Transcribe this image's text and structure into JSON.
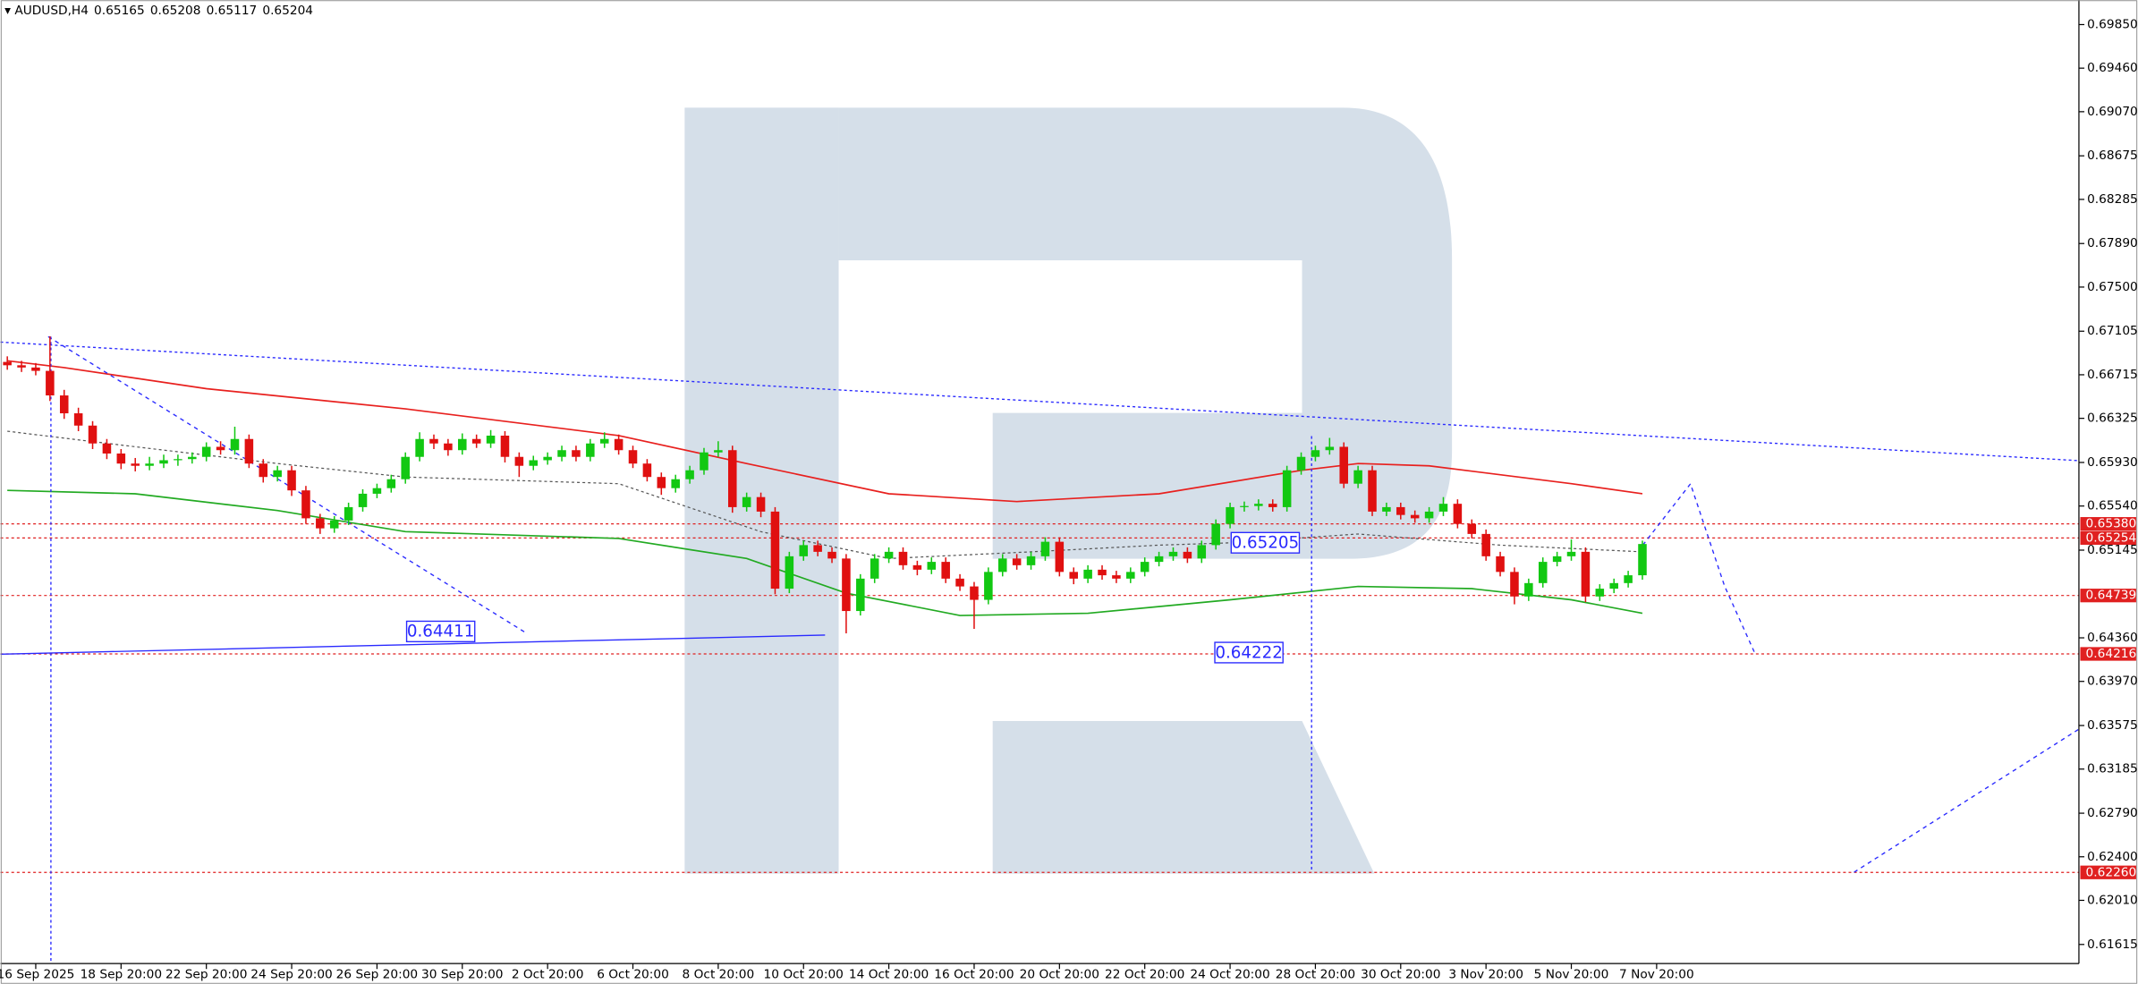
{
  "chart_data": {
    "type": "candlestick",
    "title": "AUDUSD,H4",
    "ohlc": [
      0.65165,
      0.65208,
      0.65117,
      0.65204
    ],
    "up_color": "#12c812",
    "down_color": "#e01010",
    "xlim": [
      -0.48,
      145.7
    ],
    "ylim": [
      0.61444,
      0.7007
    ],
    "xticks": [
      {
        "value": 2,
        "label": "16 Sep 2025"
      },
      {
        "value": 8,
        "label": "18 Sep 20:00"
      },
      {
        "value": 14,
        "label": "22 Sep 20:00"
      },
      {
        "value": 20,
        "label": "24 Sep 20:00"
      },
      {
        "value": 26,
        "label": "26 Sep 20:00"
      },
      {
        "value": 32,
        "label": "30 Sep 20:00"
      },
      {
        "value": 38,
        "label": "2 Oct 20:00"
      },
      {
        "value": 44,
        "label": "6 Oct 20:00"
      },
      {
        "value": 50,
        "label": "8 Oct 20:00"
      },
      {
        "value": 56,
        "label": "10 Oct 20:00"
      },
      {
        "value": 62,
        "label": "14 Oct 20:00"
      },
      {
        "value": 68,
        "label": "16 Oct 20:00"
      },
      {
        "value": 74,
        "label": "20 Oct 20:00"
      },
      {
        "value": 80,
        "label": "22 Oct 20:00"
      },
      {
        "value": 86,
        "label": "24 Oct 20:00"
      },
      {
        "value": 92,
        "label": "28 Oct 20:00"
      },
      {
        "value": 98,
        "label": "30 Oct 20:00"
      },
      {
        "value": 104,
        "label": "3 Nov 20:00"
      },
      {
        "value": 110,
        "label": "5 Nov 20:00"
      },
      {
        "value": 116,
        "label": "7 Nov 20:00"
      }
    ],
    "yticks": [
      {
        "value": 0.6985,
        "label": "0.69850"
      },
      {
        "value": 0.6946,
        "label": "0.69460"
      },
      {
        "value": 0.6907,
        "label": "0.69070"
      },
      0.68675,
      0.68285,
      {
        "value": 0.6789,
        "label": "0.67890"
      },
      {
        "value": 0.675,
        "label": "0.67500"
      },
      0.67105,
      0.66715,
      0.66325,
      {
        "value": 0.6593,
        "label": "0.65930"
      },
      {
        "value": 0.6554,
        "label": "0.65540"
      },
      0.65145,
      {
        "value": 0.6436,
        "label": "0.64360"
      },
      {
        "value": 0.6397,
        "label": "0.63970"
      },
      0.63575,
      0.63185,
      {
        "value": 0.6279,
        "label": "0.62790"
      },
      {
        "value": 0.624,
        "label": "0.62400"
      },
      {
        "value": 0.6201,
        "label": "0.62010"
      },
      0.61615
    ],
    "levels": [
      {
        "value": 0.6538,
        "label": "0.65380"
      },
      0.65254,
      0.64739,
      0.64216,
      {
        "value": 0.6226,
        "label": "0.62260"
      }
    ],
    "level_color": "#e02020",
    "annotations": [
      0.65205,
      0.64411,
      0.64222
    ],
    "candles": [
      [
        0.6683,
        0.6688,
        0.6676,
        0.668
      ],
      [
        0.668,
        0.6684,
        0.6674,
        0.6678
      ],
      [
        0.6678,
        0.6682,
        0.6671,
        0.6675
      ],
      [
        0.6675,
        0.6706,
        0.6648,
        0.6653
      ],
      [
        0.6653,
        0.6658,
        0.6632,
        0.6637
      ],
      [
        0.6637,
        0.6642,
        0.6621,
        0.6626
      ],
      [
        0.6626,
        0.663,
        0.6605,
        0.661
      ],
      [
        0.661,
        0.6614,
        0.6596,
        0.6601
      ],
      [
        0.6601,
        0.6605,
        0.6587,
        0.6592
      ],
      [
        0.6592,
        0.6597,
        0.6585,
        0.659
      ],
      [
        0.659,
        0.6598,
        0.6586,
        0.6592
      ],
      [
        0.6592,
        0.66,
        0.6588,
        0.6595
      ],
      [
        0.6595,
        0.66,
        0.659,
        0.6596
      ],
      [
        0.6596,
        0.6602,
        0.6592,
        0.6598
      ],
      [
        0.6598,
        0.6611,
        0.6594,
        0.6607
      ],
      [
        0.6607,
        0.6612,
        0.66,
        0.6604
      ],
      [
        0.6604,
        0.6625,
        0.66,
        0.6614
      ],
      [
        0.6614,
        0.6618,
        0.6588,
        0.6592
      ],
      [
        0.6592,
        0.6596,
        0.6575,
        0.658
      ],
      [
        0.658,
        0.659,
        0.6576,
        0.6586
      ],
      [
        0.6586,
        0.659,
        0.6563,
        0.6568
      ],
      [
        0.6568,
        0.6572,
        0.6538,
        0.6543
      ],
      [
        0.6543,
        0.6547,
        0.6529,
        0.6534
      ],
      [
        0.6534,
        0.6545,
        0.653,
        0.6541
      ],
      [
        0.6541,
        0.6557,
        0.6537,
        0.6553
      ],
      [
        0.6553,
        0.6569,
        0.6549,
        0.6565
      ],
      [
        0.6565,
        0.6574,
        0.6561,
        0.657
      ],
      [
        0.657,
        0.6582,
        0.6566,
        0.6578
      ],
      [
        0.6578,
        0.6602,
        0.6574,
        0.6598
      ],
      [
        0.6598,
        0.662,
        0.6594,
        0.6614
      ],
      [
        0.6614,
        0.6618,
        0.6605,
        0.661
      ],
      [
        0.661,
        0.6614,
        0.6599,
        0.6604
      ],
      [
        0.6604,
        0.6619,
        0.66,
        0.6614
      ],
      [
        0.6614,
        0.6618,
        0.6606,
        0.661
      ],
      [
        0.661,
        0.6622,
        0.6606,
        0.6617
      ],
      [
        0.6617,
        0.6621,
        0.6593,
        0.6598
      ],
      [
        0.6598,
        0.6602,
        0.658,
        0.659
      ],
      [
        0.659,
        0.6599,
        0.6586,
        0.6595
      ],
      [
        0.6595,
        0.6602,
        0.6591,
        0.6598
      ],
      [
        0.6598,
        0.6608,
        0.6594,
        0.6604
      ],
      [
        0.6604,
        0.6608,
        0.6594,
        0.6598
      ],
      [
        0.6598,
        0.6614,
        0.6594,
        0.661
      ],
      [
        0.661,
        0.662,
        0.6606,
        0.6614
      ],
      [
        0.6614,
        0.6618,
        0.66,
        0.6604
      ],
      [
        0.6604,
        0.6608,
        0.6588,
        0.6592
      ],
      [
        0.6592,
        0.6596,
        0.6576,
        0.658
      ],
      [
        0.658,
        0.6584,
        0.6564,
        0.657
      ],
      [
        0.657,
        0.6582,
        0.6566,
        0.6578
      ],
      [
        0.6578,
        0.659,
        0.6574,
        0.6586
      ],
      [
        0.6586,
        0.6606,
        0.6582,
        0.6602
      ],
      [
        0.6602,
        0.6612,
        0.6598,
        0.6604
      ],
      [
        0.6604,
        0.6608,
        0.6548,
        0.6553
      ],
      [
        0.6553,
        0.6566,
        0.6549,
        0.6562
      ],
      [
        0.6562,
        0.6566,
        0.6544,
        0.6549
      ],
      [
        0.6549,
        0.6553,
        0.6475,
        0.648
      ],
      [
        0.648,
        0.6513,
        0.6476,
        0.6509
      ],
      [
        0.6509,
        0.6523,
        0.6505,
        0.6519
      ],
      [
        0.6519,
        0.6523,
        0.6509,
        0.6513
      ],
      [
        0.6513,
        0.6517,
        0.6503,
        0.6507
      ],
      [
        0.6507,
        0.6511,
        0.644,
        0.646
      ],
      [
        0.646,
        0.6493,
        0.6456,
        0.6489
      ],
      [
        0.6489,
        0.6511,
        0.6485,
        0.6507
      ],
      [
        0.6507,
        0.6517,
        0.6503,
        0.6513
      ],
      [
        0.6513,
        0.6517,
        0.6497,
        0.6501
      ],
      [
        0.6501,
        0.6505,
        0.6492,
        0.6497
      ],
      [
        0.6497,
        0.6508,
        0.6493,
        0.6504
      ],
      [
        0.6504,
        0.6508,
        0.6485,
        0.6489
      ],
      [
        0.6489,
        0.6493,
        0.6478,
        0.6482
      ],
      [
        0.6482,
        0.6486,
        0.6444,
        0.647
      ],
      [
        0.647,
        0.6499,
        0.6466,
        0.6495
      ],
      [
        0.6495,
        0.6511,
        0.6491,
        0.6507
      ],
      [
        0.6507,
        0.6511,
        0.6497,
        0.6501
      ],
      [
        0.6501,
        0.6513,
        0.6497,
        0.6509
      ],
      [
        0.6509,
        0.6526,
        0.6505,
        0.6522
      ],
      [
        0.6522,
        0.6526,
        0.6491,
        0.6495
      ],
      [
        0.6495,
        0.6499,
        0.6484,
        0.6489
      ],
      [
        0.6489,
        0.6501,
        0.6485,
        0.6497
      ],
      [
        0.6497,
        0.6501,
        0.6488,
        0.6492
      ],
      [
        0.6492,
        0.6496,
        0.6485,
        0.6489
      ],
      [
        0.6489,
        0.6499,
        0.6485,
        0.6495
      ],
      [
        0.6495,
        0.6508,
        0.6491,
        0.6504
      ],
      [
        0.6504,
        0.6513,
        0.65,
        0.6509
      ],
      [
        0.6509,
        0.6517,
        0.6505,
        0.6513
      ],
      [
        0.6513,
        0.6517,
        0.6503,
        0.6507
      ],
      [
        0.6507,
        0.6523,
        0.6503,
        0.6519
      ],
      [
        0.6519,
        0.6542,
        0.6515,
        0.6538
      ],
      [
        0.6538,
        0.6557,
        0.6534,
        0.6553
      ],
      [
        0.6553,
        0.6558,
        0.6549,
        0.6554
      ],
      [
        0.6554,
        0.656,
        0.655,
        0.6556
      ],
      [
        0.6556,
        0.656,
        0.6549,
        0.6553
      ],
      [
        0.6553,
        0.659,
        0.6549,
        0.6586
      ],
      [
        0.6586,
        0.6602,
        0.6582,
        0.6598
      ],
      [
        0.6598,
        0.6608,
        0.6594,
        0.6604
      ],
      [
        0.6604,
        0.6615,
        0.66,
        0.6607
      ],
      [
        0.6607,
        0.6611,
        0.657,
        0.6574
      ],
      [
        0.6574,
        0.659,
        0.657,
        0.6586
      ],
      [
        0.6586,
        0.659,
        0.6545,
        0.6549
      ],
      [
        0.6549,
        0.6557,
        0.6545,
        0.6553
      ],
      [
        0.6553,
        0.6557,
        0.6542,
        0.6546
      ],
      [
        0.6546,
        0.655,
        0.6539,
        0.6543
      ],
      [
        0.6543,
        0.6553,
        0.6539,
        0.6549
      ],
      [
        0.6549,
        0.6562,
        0.6545,
        0.6556
      ],
      [
        0.6556,
        0.656,
        0.6534,
        0.6538
      ],
      [
        0.6538,
        0.6542,
        0.6525,
        0.6529
      ],
      [
        0.6529,
        0.6533,
        0.6505,
        0.6509
      ],
      [
        0.6509,
        0.6513,
        0.6491,
        0.6495
      ],
      [
        0.6495,
        0.6499,
        0.6466,
        0.6473
      ],
      [
        0.6473,
        0.6489,
        0.6469,
        0.6485
      ],
      [
        0.6485,
        0.6508,
        0.6481,
        0.6504
      ],
      [
        0.6504,
        0.6513,
        0.65,
        0.6509
      ],
      [
        0.6509,
        0.6524,
        0.6505,
        0.6513
      ],
      [
        0.6513,
        0.6517,
        0.6468,
        0.6473
      ],
      [
        0.6473,
        0.6484,
        0.6469,
        0.648
      ],
      [
        0.648,
        0.6489,
        0.6476,
        0.6485
      ],
      [
        0.6485,
        0.6496,
        0.6481,
        0.6492
      ],
      [
        0.6492,
        0.6523,
        0.6488,
        0.652
      ]
    ],
    "series": [
      {
        "color": "#e8201e",
        "dash": false,
        "x": [
          0,
          4,
          14,
          28,
          43,
          52,
          62,
          71,
          81,
          91,
          95,
          100,
          110,
          115
        ],
        "values": [
          0.6684,
          0.6678,
          0.6659,
          0.6641,
          0.6617,
          0.6592,
          0.6565,
          0.6558,
          0.6565,
          0.6586,
          0.6592,
          0.659,
          0.6574,
          0.6565
        ]
      },
      {
        "color": "#22aa22",
        "dash": false,
        "x": [
          0,
          9,
          19,
          28,
          43,
          52,
          59,
          67,
          76,
          86,
          95,
          103,
          110,
          115
        ],
        "values": [
          0.6568,
          0.6565,
          0.655,
          0.6531,
          0.6525,
          0.6507,
          0.6476,
          0.6456,
          0.6458,
          0.647,
          0.6482,
          0.648,
          0.647,
          0.6458
        ]
      },
      {
        "color": "#555555",
        "dash": true,
        "x": [
          0,
          9,
          19,
          28,
          43,
          53,
          62,
          72,
          81,
          86,
          95,
          105,
          115
        ],
        "values": [
          0.6621,
          0.6607,
          0.6592,
          0.658,
          0.6574,
          0.6531,
          0.6507,
          0.6513,
          0.6519,
          0.6521,
          0.6529,
          0.6519,
          0.6513
        ]
      }
    ]
  }
}
